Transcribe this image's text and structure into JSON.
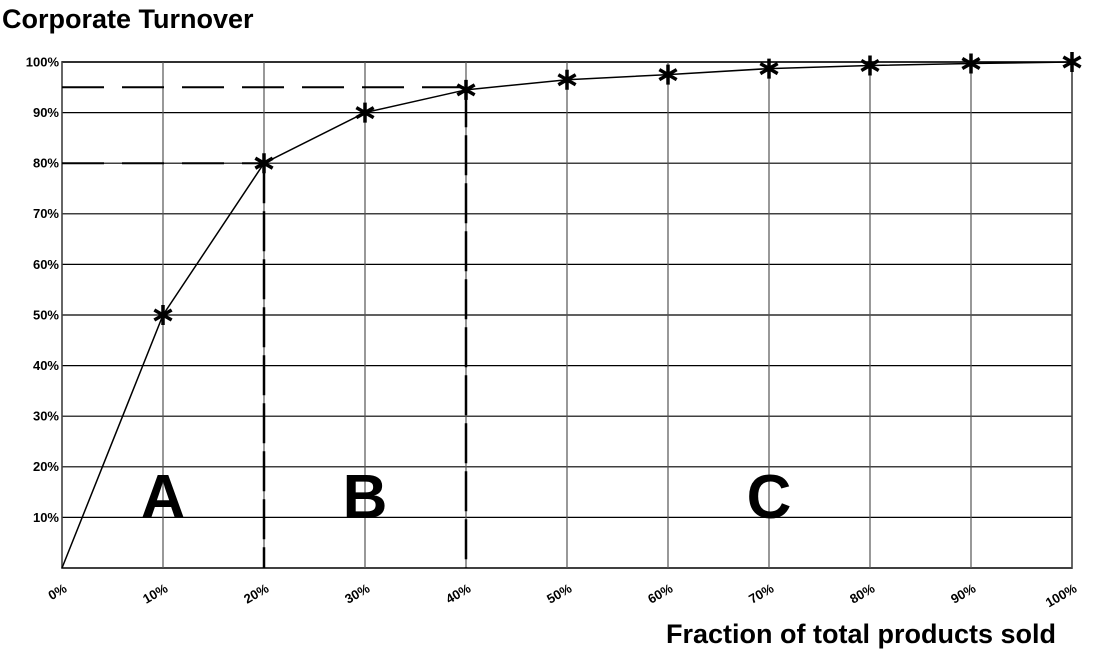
{
  "chart_data": {
    "type": "line",
    "title": "Corporate Turnover",
    "x_label": "Fraction of total products sold",
    "x": [
      0,
      10,
      20,
      30,
      40,
      50,
      60,
      70,
      80,
      90,
      100
    ],
    "values": [
      0,
      50,
      80,
      90,
      94.5,
      96.5,
      97.5,
      98.7,
      99.3,
      99.7,
      100
    ],
    "color": "#000000",
    "marker": "asterisk",
    "xlim": [
      0,
      100
    ],
    "ylim": [
      0,
      100
    ],
    "xticks": [
      {
        "value": 0,
        "label": "0%"
      },
      {
        "value": 10,
        "label": "10%"
      },
      {
        "value": 20,
        "label": "20%"
      },
      {
        "value": 30,
        "label": "30%"
      },
      {
        "value": 40,
        "label": "40%"
      },
      {
        "value": 50,
        "label": "50%"
      },
      {
        "value": 60,
        "label": "60%"
      },
      {
        "value": 70,
        "label": "70%"
      },
      {
        "value": 80,
        "label": "80%"
      },
      {
        "value": 90,
        "label": "90%"
      },
      {
        "value": 100,
        "label": "100%"
      }
    ],
    "yticks": [
      {
        "value": 10,
        "label": "10%"
      },
      {
        "value": 20,
        "label": "20%"
      },
      {
        "value": 30,
        "label": "30%"
      },
      {
        "value": 40,
        "label": "40%"
      },
      {
        "value": 50,
        "label": "50%"
      },
      {
        "value": 60,
        "label": "60%"
      },
      {
        "value": 70,
        "label": "70%"
      },
      {
        "value": 80,
        "label": "80%"
      },
      {
        "value": 90,
        "label": "90%"
      },
      {
        "value": 100,
        "label": "100%"
      }
    ],
    "grid": true,
    "guides": [
      {
        "x": 20,
        "y": 80
      },
      {
        "x": 40,
        "y": 95
      }
    ],
    "regions": [
      "A",
      "B",
      "C"
    ]
  }
}
